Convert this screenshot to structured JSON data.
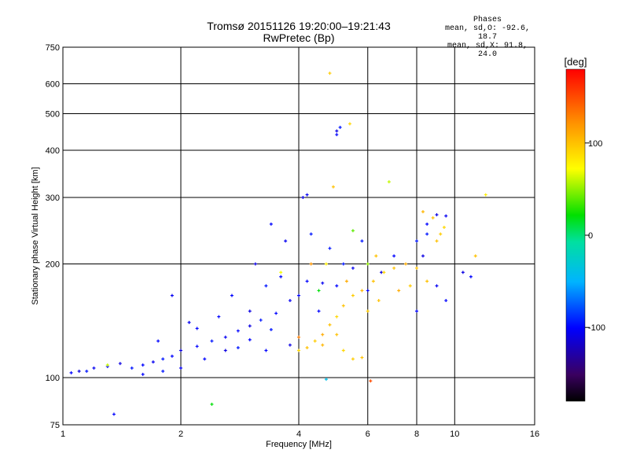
{
  "header": {
    "title_line1": "Tromsø 20151126 19:20:00–19:21:43",
    "title_line2": "RwPretec (Bp)"
  },
  "stats": {
    "heading": "Phases",
    "line_o": "mean, sd,O: -92.6, 18.7",
    "line_x": "mean, sd,X:  91.8, 24.0"
  },
  "colorbar": {
    "label": "[deg]",
    "ticks": [
      {
        "value": 100,
        "label": "100"
      },
      {
        "value": 0,
        "label": "0"
      },
      {
        "value": -100,
        "label": "-100"
      }
    ],
    "range": [
      -180,
      180
    ]
  },
  "chart_data": {
    "type": "scatter",
    "title": "Tromsø 20151126 19:20:00–19:21:43",
    "subtitle": "RwPretec (Bp)",
    "xlabel": "Frequency [MHz]",
    "ylabel": "Stationary phase Virtual Height [km]",
    "x_scale": "log",
    "y_scale": "log",
    "xlim": [
      1,
      16
    ],
    "ylim": [
      75,
      750
    ],
    "x_ticks": [
      1,
      2,
      4,
      6,
      8,
      10,
      16
    ],
    "y_ticks": [
      75,
      100,
      200,
      300,
      400,
      500,
      600,
      750
    ],
    "grid": true,
    "color_encodes": "phase (deg)",
    "series": [
      {
        "points": [
          [
            1.05,
            103,
            -100
          ],
          [
            1.1,
            104,
            -110
          ],
          [
            1.15,
            104,
            -95
          ],
          [
            1.2,
            106,
            -105
          ],
          [
            1.3,
            107,
            -100
          ],
          [
            1.4,
            109,
            -110
          ],
          [
            1.5,
            106,
            -95
          ],
          [
            1.6,
            108,
            -100
          ],
          [
            1.7,
            110,
            -105
          ],
          [
            1.8,
            112,
            -95
          ],
          [
            1.9,
            114,
            -100
          ],
          [
            2.0,
            118,
            -110
          ],
          [
            2.2,
            121,
            -100
          ],
          [
            2.4,
            125,
            -95
          ],
          [
            2.6,
            128,
            -105
          ],
          [
            2.8,
            133,
            -100
          ],
          [
            3.0,
            137,
            -110
          ],
          [
            3.2,
            142,
            -95
          ],
          [
            3.5,
            148,
            -100
          ],
          [
            3.8,
            160,
            -105
          ],
          [
            4.0,
            165,
            -100
          ],
          [
            1.6,
            102,
            -100
          ],
          [
            1.8,
            104,
            -95
          ],
          [
            2.0,
            106,
            -105
          ],
          [
            2.3,
            112,
            -100
          ],
          [
            2.6,
            118,
            -110
          ],
          [
            3.0,
            126,
            -100
          ],
          [
            3.4,
            134,
            -95
          ],
          [
            1.75,
            125,
            -100
          ],
          [
            2.1,
            140,
            -105
          ],
          [
            2.5,
            145,
            -100
          ],
          [
            3.0,
            150,
            -110
          ],
          [
            3.3,
            175,
            -95
          ],
          [
            3.6,
            185,
            -100
          ],
          [
            1.9,
            165,
            -105
          ],
          [
            2.2,
            135,
            -100
          ],
          [
            2.8,
            120,
            -95
          ],
          [
            3.3,
            118,
            -100
          ],
          [
            3.8,
            122,
            -110
          ],
          [
            4.2,
            180,
            -100
          ],
          [
            4.6,
            178,
            -105
          ],
          [
            5.0,
            175,
            -100
          ],
          [
            5.2,
            200,
            -95
          ],
          [
            4.1,
            300,
            -110
          ],
          [
            4.2,
            305,
            -105
          ],
          [
            5.0,
            450,
            -110
          ],
          [
            5.0,
            440,
            -100
          ],
          [
            5.1,
            460,
            -95
          ],
          [
            9.0,
            270,
            -110
          ],
          [
            9.5,
            268,
            -105
          ],
          [
            8.5,
            255,
            -100
          ],
          [
            8.0,
            230,
            -95
          ],
          [
            8.3,
            210,
            -110
          ],
          [
            8.0,
            150,
            -100
          ],
          [
            9.0,
            175,
            -105
          ],
          [
            9.5,
            160,
            -100
          ],
          [
            10.5,
            190,
            -110
          ],
          [
            11.0,
            185,
            -100
          ],
          [
            8.5,
            240,
            -95
          ],
          [
            6.0,
            170,
            -100
          ],
          [
            4.5,
            150,
            -100
          ],
          [
            4.8,
            220,
            -95
          ],
          [
            5.5,
            195,
            -105
          ],
          [
            6.5,
            190,
            -110
          ],
          [
            7.0,
            210,
            -100
          ],
          [
            3.4,
            255,
            -100
          ],
          [
            3.7,
            230,
            -105
          ],
          [
            4.3,
            240,
            -95
          ],
          [
            1.35,
            80,
            -100
          ],
          [
            2.7,
            165,
            -100
          ],
          [
            3.1,
            200,
            -110
          ],
          [
            5.8,
            230,
            -95
          ]
        ]
      },
      {
        "points": [
          [
            4.0,
            118,
            90
          ],
          [
            4.2,
            120,
            100
          ],
          [
            4.4,
            125,
            95
          ],
          [
            4.6,
            130,
            110
          ],
          [
            4.8,
            138,
            100
          ],
          [
            5.0,
            145,
            90
          ],
          [
            5.2,
            155,
            100
          ],
          [
            5.5,
            165,
            95
          ],
          [
            5.8,
            170,
            105
          ],
          [
            6.2,
            180,
            100
          ],
          [
            6.6,
            190,
            90
          ],
          [
            7.0,
            195,
            100
          ],
          [
            7.5,
            200,
            110
          ],
          [
            5.5,
            112,
            95
          ],
          [
            5.8,
            113,
            100
          ],
          [
            5.2,
            118,
            90
          ],
          [
            4.6,
            122,
            105
          ],
          [
            5.0,
            130,
            100
          ],
          [
            6.0,
            150,
            95
          ],
          [
            6.4,
            160,
            100
          ],
          [
            7.2,
            170,
            110
          ],
          [
            8.5,
            180,
            100
          ],
          [
            9.2,
            240,
            95
          ],
          [
            8.8,
            265,
            100
          ],
          [
            8.3,
            275,
            105
          ],
          [
            9.4,
            250,
            90
          ],
          [
            4.9,
            320,
            100
          ],
          [
            4.8,
            640,
            95
          ],
          [
            5.4,
            470,
            90
          ],
          [
            4.7,
            200,
            80
          ],
          [
            6.8,
            330,
            60
          ],
          [
            5.5,
            245,
            40
          ],
          [
            4.5,
            170,
            20
          ],
          [
            6.0,
            200,
            50
          ],
          [
            5.3,
            180,
            110
          ],
          [
            6.3,
            210,
            100
          ],
          [
            7.7,
            175,
            95
          ],
          [
            8.0,
            195,
            100
          ],
          [
            4.0,
            128,
            130
          ],
          [
            4.3,
            200,
            120
          ],
          [
            6.1,
            98,
            150
          ],
          [
            4.7,
            99,
            -40
          ],
          [
            2.4,
            85,
            20
          ],
          [
            1.3,
            108,
            60
          ],
          [
            3.6,
            190,
            70
          ],
          [
            11.3,
            210,
            100
          ],
          [
            12.0,
            305,
            80
          ],
          [
            9.0,
            230,
            100
          ]
        ]
      }
    ]
  }
}
